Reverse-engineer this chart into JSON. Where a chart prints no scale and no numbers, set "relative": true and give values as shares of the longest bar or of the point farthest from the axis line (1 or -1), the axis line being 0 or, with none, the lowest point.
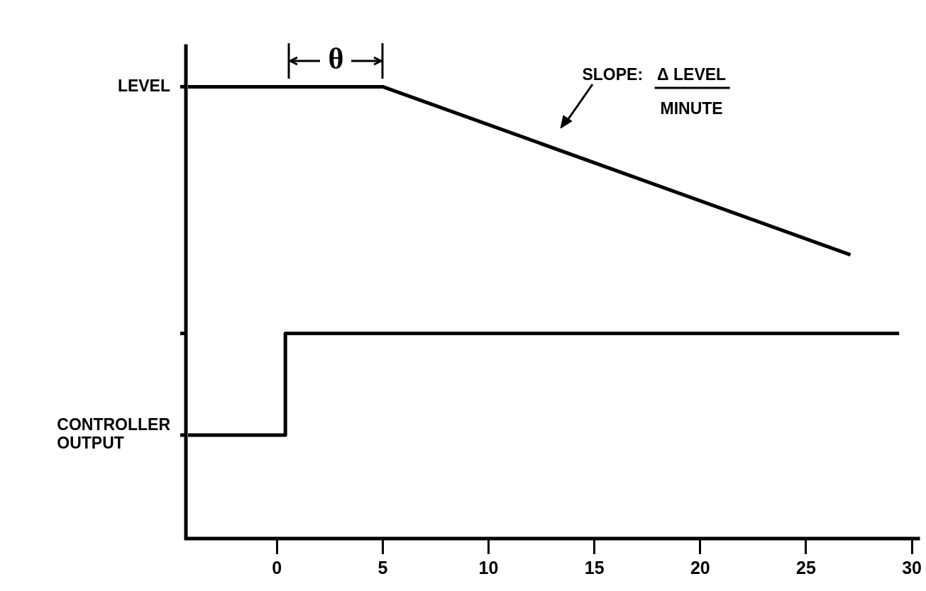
{
  "chart_data": {
    "type": "line",
    "relative": true,
    "xlim": [
      -4.3,
      30.3
    ],
    "xticks": [
      0,
      5,
      10,
      15,
      20,
      25,
      30
    ],
    "series": [
      {
        "name": "LEVEL",
        "type": "line",
        "color": "#000000",
        "x": [
          -4.2,
          5,
          27.1
        ],
        "values": [
          1,
          1,
          0.628
        ]
      },
      {
        "name": "CONTROLLER OUTPUT",
        "type": "step",
        "color": "#000000",
        "x": [
          -4.2,
          0.4,
          29.4
        ],
        "values": [
          0.229,
          0.454,
          0.454
        ]
      }
    ],
    "annotations": [
      "θ",
      "SLOPE:",
      "Δ LEVEL",
      "MINUTE"
    ],
    "legend": "left",
    "marker": "none",
    "line_style": "solid"
  }
}
